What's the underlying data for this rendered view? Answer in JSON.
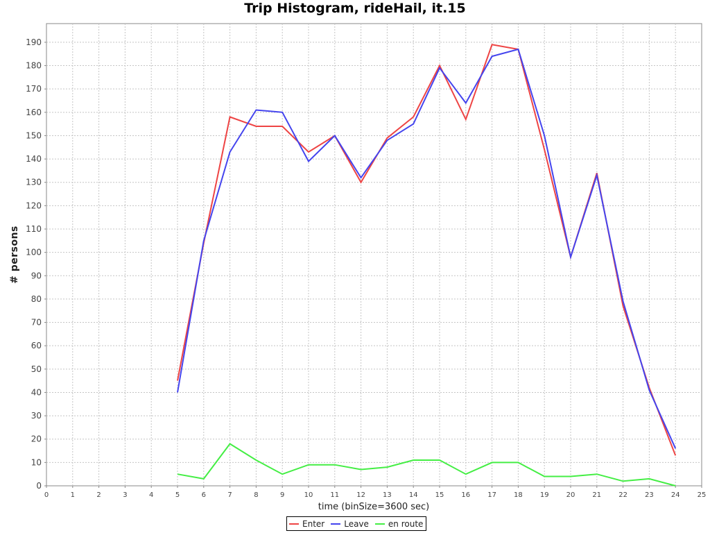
{
  "chart_data": {
    "type": "line",
    "title": "Trip Histogram, rideHail, it.15",
    "xlabel": "time (binSize=3600 sec)",
    "ylabel": "# persons",
    "xlim": [
      0,
      25
    ],
    "ylim": [
      0,
      198
    ],
    "x_ticks": [
      0,
      1,
      2,
      3,
      4,
      5,
      6,
      7,
      8,
      9,
      10,
      11,
      12,
      13,
      14,
      15,
      16,
      17,
      18,
      19,
      20,
      21,
      22,
      23,
      24,
      25
    ],
    "y_ticks": [
      0,
      10,
      20,
      30,
      40,
      50,
      60,
      70,
      80,
      90,
      100,
      110,
      120,
      130,
      140,
      150,
      160,
      170,
      180,
      190
    ],
    "grid": true,
    "legend_position": "bottom-center",
    "x": [
      5,
      6,
      7,
      8,
      9,
      10,
      11,
      12,
      13,
      14,
      15,
      16,
      17,
      18,
      19,
      20,
      21,
      22,
      23,
      24
    ],
    "series": [
      {
        "name": "Enter",
        "color": "#ee4444",
        "values": [
          45,
          104,
          158,
          154,
          154,
          143,
          150,
          130,
          149,
          158,
          180,
          157,
          189,
          187,
          144,
          98,
          134,
          77,
          42,
          13
        ]
      },
      {
        "name": "Leave",
        "color": "#4444ee",
        "values": [
          40,
          105,
          143,
          161,
          160,
          139,
          150,
          132,
          148,
          155,
          179,
          164,
          184,
          187,
          150,
          98,
          133,
          79,
          41,
          16
        ]
      },
      {
        "name": "en route",
        "color": "#44ee44",
        "values": [
          5,
          3,
          18,
          11,
          5,
          9,
          9,
          7,
          8,
          11,
          11,
          5,
          10,
          10,
          4,
          4,
          5,
          2,
          3,
          0
        ]
      }
    ]
  }
}
